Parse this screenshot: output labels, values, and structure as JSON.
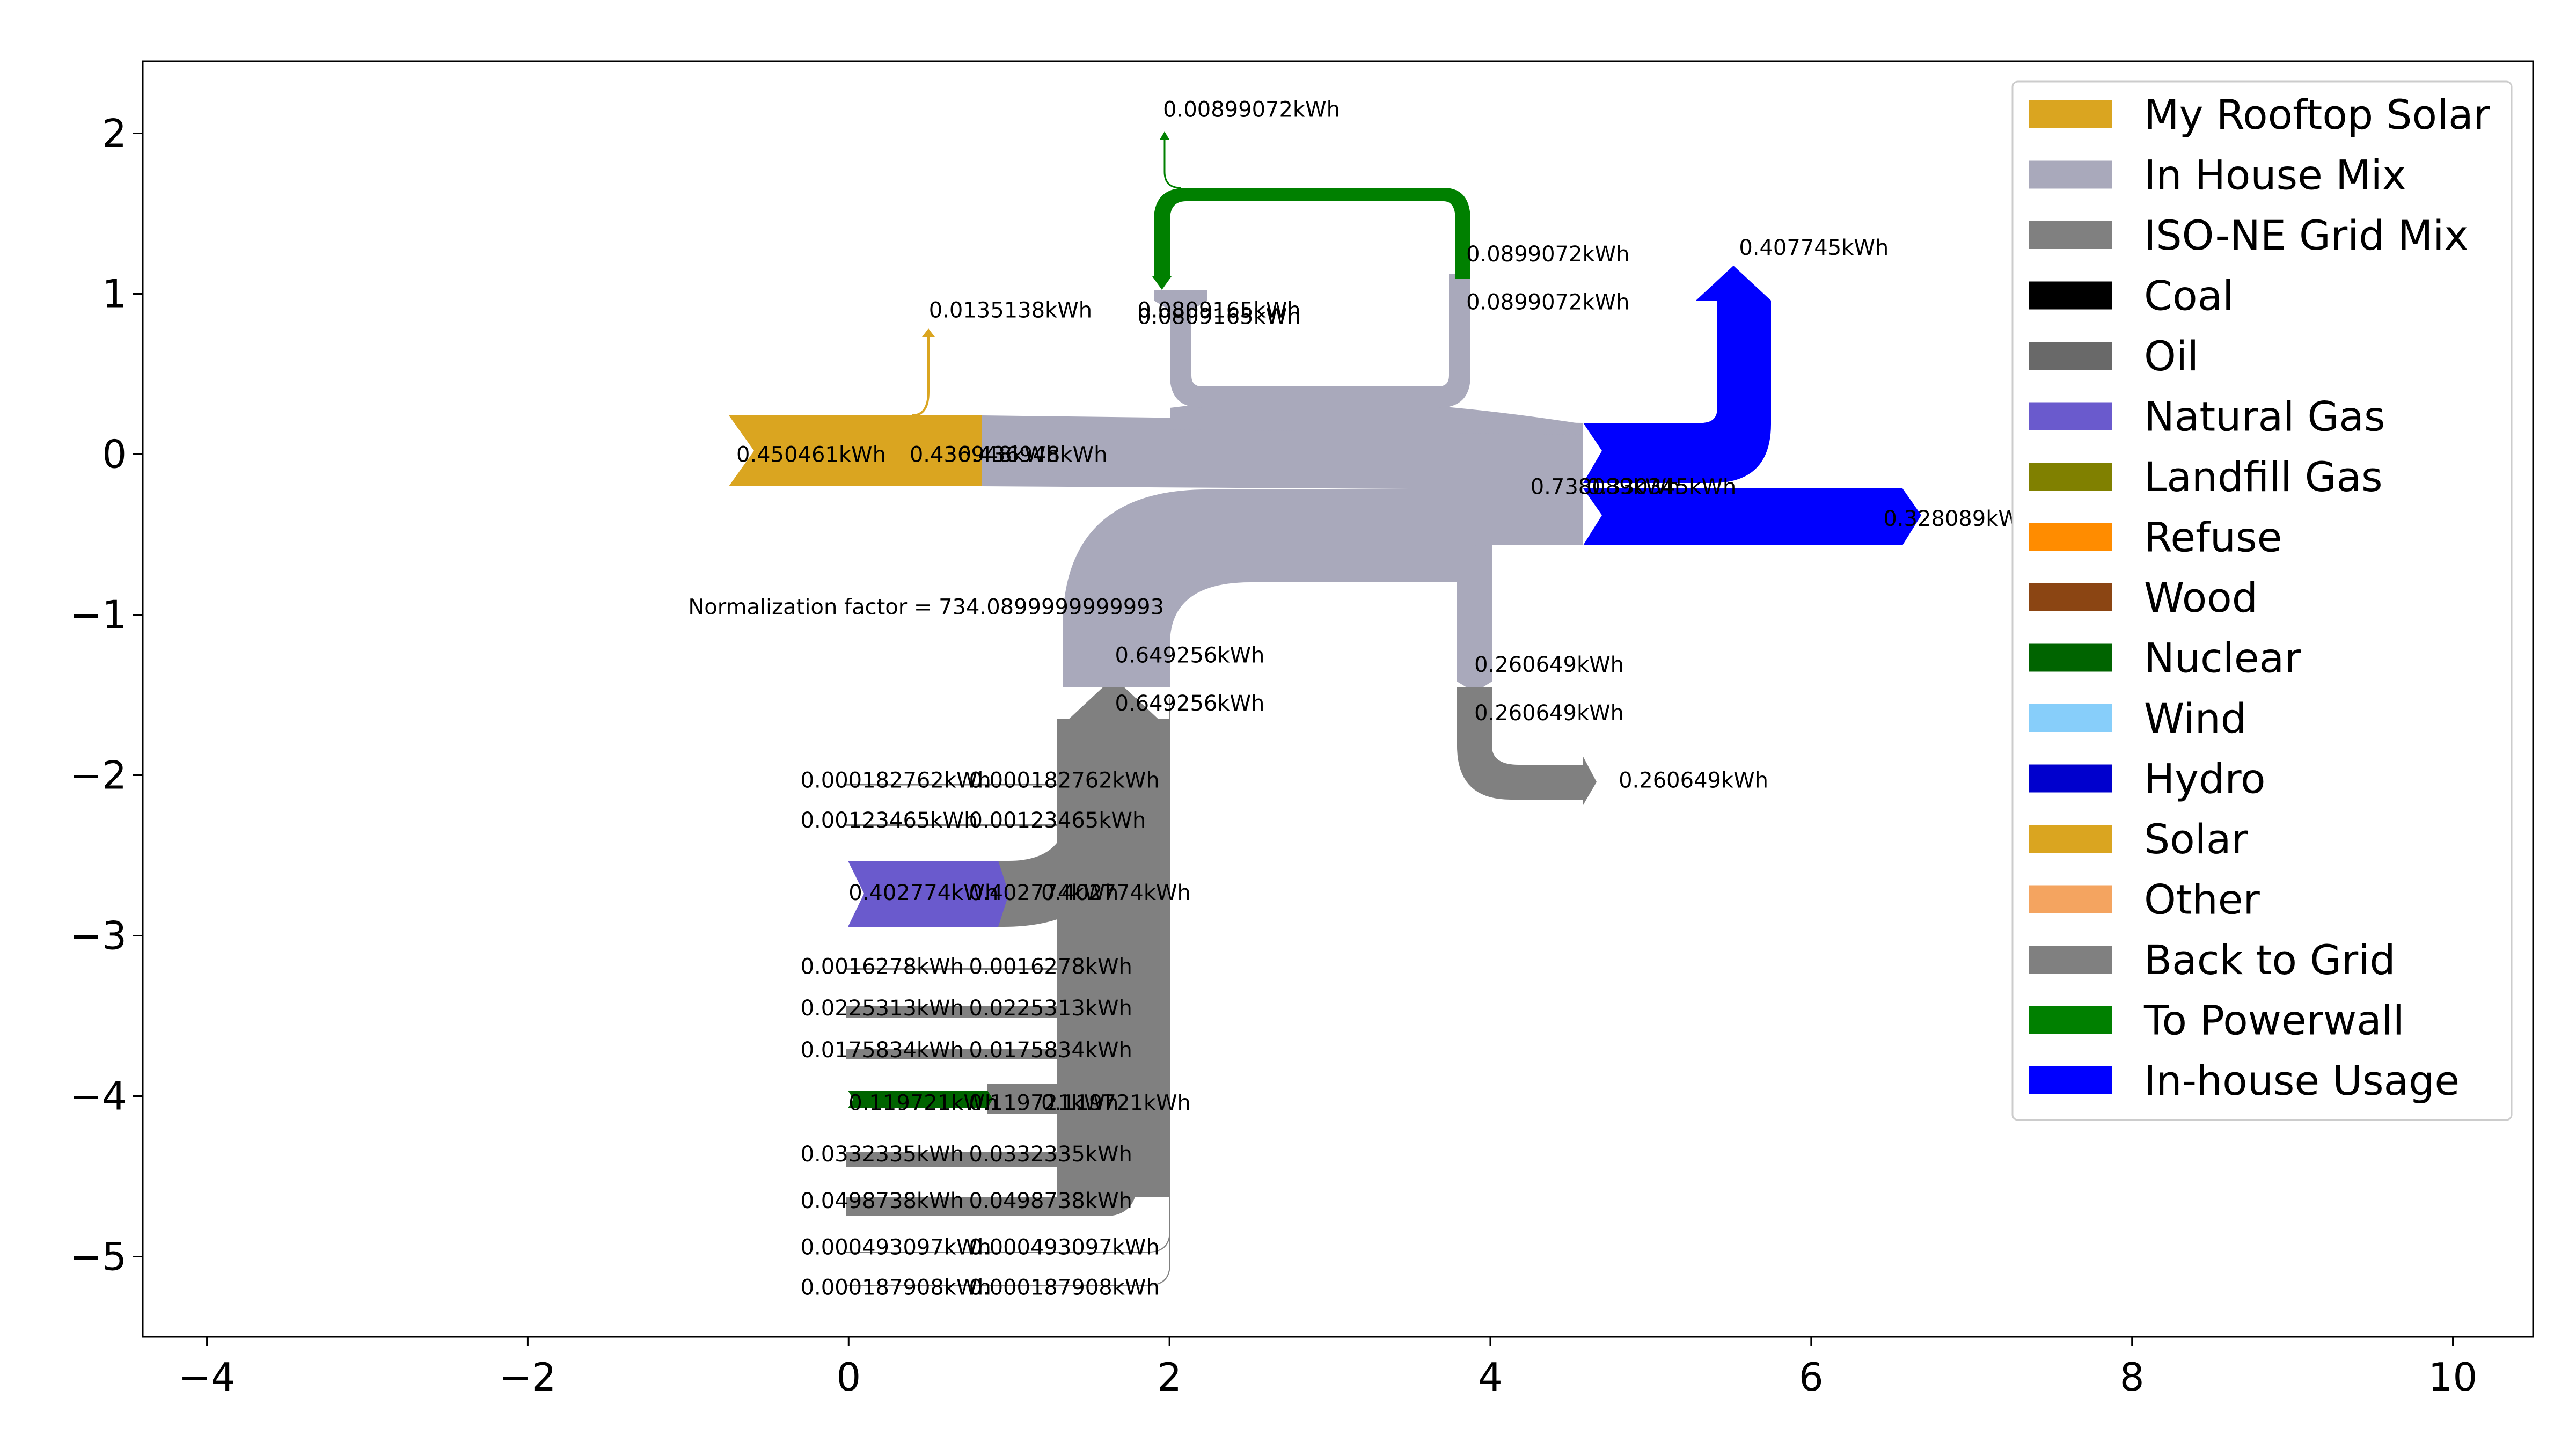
{
  "chart_data": {
    "type": "sankey",
    "title": "",
    "xlabel": "",
    "ylabel": "",
    "xlim": [
      -4.4,
      10.5
    ],
    "ylim": [
      -5.5,
      2.45
    ],
    "x_ticks": [
      -4,
      -2,
      0,
      2,
      4,
      6,
      8,
      10
    ],
    "x_tick_labels": [
      "−4",
      "−2",
      "0",
      "2",
      "4",
      "6",
      "8",
      "10"
    ],
    "y_ticks": [
      2,
      1,
      0,
      -1,
      -2,
      -3,
      -4,
      -5
    ],
    "y_tick_labels": [
      "2",
      "1",
      "0",
      "−1",
      "−2",
      "−3",
      "−4",
      "−5"
    ],
    "normalization_text": "Normalization factor = 734.0899999999993",
    "legend_position": "top-right",
    "legend": [
      {
        "label": "My Rooftop Solar",
        "color": "#DAA520"
      },
      {
        "label": "In House Mix",
        "color": "#A9A9BB"
      },
      {
        "label": "ISO-NE Grid Mix",
        "color": "#808080"
      },
      {
        "label": "Coal",
        "color": "#000000"
      },
      {
        "label": "Oil",
        "color": "#696969"
      },
      {
        "label": "Natural Gas",
        "color": "#6A5ACD"
      },
      {
        "label": "Landfill Gas",
        "color": "#808000"
      },
      {
        "label": "Refuse",
        "color": "#FF8C00"
      },
      {
        "label": "Wood",
        "color": "#8B4513"
      },
      {
        "label": "Nuclear",
        "color": "#006400"
      },
      {
        "label": "Wind",
        "color": "#87CEFA"
      },
      {
        "label": "Hydro",
        "color": "#0000CD"
      },
      {
        "label": "Solar",
        "color": "#DAA520"
      },
      {
        "label": "Other",
        "color": "#F4A460"
      },
      {
        "label": "Back to Grid",
        "color": "#808080"
      },
      {
        "label": "To Powerwall",
        "color": "#008000"
      },
      {
        "label": "In-house Usage",
        "color": "#0000FF"
      }
    ],
    "flow_labels": [
      {
        "text": "0.00899072kWh",
        "x": 1.96,
        "y": 2.15
      },
      {
        "text": "0.0135138kWh",
        "x": 0.5,
        "y": 0.9
      },
      {
        "text": "0.0899072kWh",
        "x": 3.85,
        "y": 1.25
      },
      {
        "text": "0.0899072kWh",
        "x": 3.85,
        "y": 0.95
      },
      {
        "text": "0.0809165kWh",
        "x": 1.8,
        "y": 0.9
      },
      {
        "text": "0.0809165kWh",
        "x": 1.8,
        "y": 0.86
      },
      {
        "text": "0.407745kWh",
        "x": 5.55,
        "y": 1.29
      },
      {
        "text": "0.450461kWh",
        "x": -0.7,
        "y": 0.0
      },
      {
        "text": "0.436948kWh",
        "x": 0.38,
        "y": 0.0
      },
      {
        "text": "0.436948kWh",
        "x": 0.68,
        "y": 0.0
      },
      {
        "text": "0.738089kWh",
        "x": 4.25,
        "y": -0.2
      },
      {
        "text": "0.330345kWh",
        "x": 4.6,
        "y": -0.2
      },
      {
        "text": "0.328089kWh",
        "x": 6.45,
        "y": -0.4
      },
      {
        "text": "Normalization factor = 734.0899999999993",
        "x": -1.0,
        "y": -0.95
      },
      {
        "text": "0.649256kWh",
        "x": 1.66,
        "y": -1.25
      },
      {
        "text": "0.649256kWh",
        "x": 1.66,
        "y": -1.55
      },
      {
        "text": "0.260649kWh",
        "x": 3.9,
        "y": -1.31
      },
      {
        "text": "0.260649kWh",
        "x": 3.9,
        "y": -1.61
      },
      {
        "text": "0.260649kWh",
        "x": 4.8,
        "y": -2.03
      },
      {
        "text": "0.000182762kWh",
        "x": -0.3,
        "y": -2.03
      },
      {
        "text": "0.000182762kWh",
        "x": 0.75,
        "y": -2.03
      },
      {
        "text": "0.00123465kWh",
        "x": -0.3,
        "y": -2.28
      },
      {
        "text": "0.00123465kWh",
        "x": 0.75,
        "y": -2.28
      },
      {
        "text": "0.402774kWh",
        "x": 0.0,
        "y": -2.73
      },
      {
        "text": "0.402774kWh",
        "x": 0.75,
        "y": -2.73
      },
      {
        "text": "0.402774kWh",
        "x": 1.2,
        "y": -2.73
      },
      {
        "text": "0.0016278kWh",
        "x": -0.3,
        "y": -3.19
      },
      {
        "text": "0.0016278kWh",
        "x": 0.75,
        "y": -3.19
      },
      {
        "text": "0.0225313kWh",
        "x": -0.3,
        "y": -3.45
      },
      {
        "text": "0.0225313kWh",
        "x": 0.75,
        "y": -3.45
      },
      {
        "text": "0.0175834kWh",
        "x": -0.3,
        "y": -3.71
      },
      {
        "text": "0.0175834kWh",
        "x": 0.75,
        "y": -3.71
      },
      {
        "text": "0.119721kWh",
        "x": 0.0,
        "y": -4.04
      },
      {
        "text": "0.119721kWh",
        "x": 0.75,
        "y": -4.04
      },
      {
        "text": "0.119721kWh",
        "x": 1.2,
        "y": -4.04
      },
      {
        "text": "0.0332335kWh",
        "x": -0.3,
        "y": -4.36
      },
      {
        "text": "0.0332335kWh",
        "x": 0.75,
        "y": -4.36
      },
      {
        "text": "0.0498738kWh",
        "x": -0.3,
        "y": -4.65
      },
      {
        "text": "0.0498738kWh",
        "x": 0.75,
        "y": -4.65
      },
      {
        "text": "0.000493097kWh",
        "x": -0.3,
        "y": -4.94
      },
      {
        "text": "0.000493097kWh",
        "x": 0.75,
        "y": -4.94
      },
      {
        "text": "0.000187908kWh",
        "x": -0.3,
        "y": -5.19
      },
      {
        "text": "0.000187908kWh",
        "x": 0.75,
        "y": -5.19
      }
    ]
  }
}
